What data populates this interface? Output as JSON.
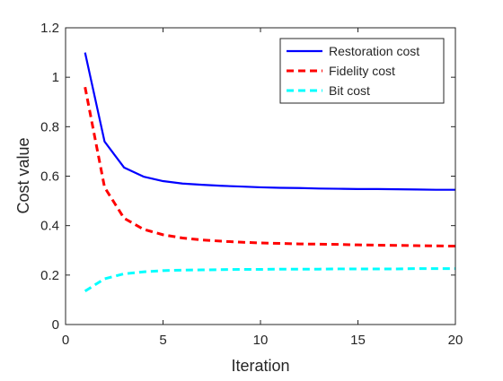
{
  "chart_data": {
    "type": "line",
    "xlabel": "Iteration",
    "ylabel": "Cost value",
    "xlim": [
      0,
      20
    ],
    "ylim": [
      0,
      1.2
    ],
    "xticks": [
      0,
      5,
      10,
      15,
      20
    ],
    "yticks": [
      0,
      0.2,
      0.4,
      0.6,
      0.8,
      1,
      1.2
    ],
    "xtick_labels": [
      "0",
      "5",
      "10",
      "15",
      "20"
    ],
    "ytick_labels": [
      "0",
      "0.2",
      "0.4",
      "0.6",
      "0.8",
      "1",
      "1.2"
    ],
    "grid": false,
    "legend_position": "top-right",
    "x": [
      1,
      2,
      3,
      4,
      5,
      6,
      7,
      8,
      9,
      10,
      11,
      12,
      13,
      14,
      15,
      16,
      17,
      18,
      19,
      20
    ],
    "series": [
      {
        "name": "Restoration cost",
        "color": "#0000ff",
        "dash": "solid",
        "values": [
          1.1,
          0.74,
          0.635,
          0.598,
          0.58,
          0.57,
          0.565,
          0.561,
          0.558,
          0.555,
          0.553,
          0.552,
          0.55,
          0.549,
          0.548,
          0.548,
          0.547,
          0.546,
          0.545,
          0.545
        ]
      },
      {
        "name": "Fidelity cost",
        "color": "#ff0000",
        "dash": "dashed",
        "values": [
          0.96,
          0.555,
          0.43,
          0.385,
          0.363,
          0.35,
          0.342,
          0.337,
          0.333,
          0.33,
          0.328,
          0.326,
          0.325,
          0.324,
          0.322,
          0.321,
          0.32,
          0.319,
          0.318,
          0.317
        ]
      },
      {
        "name": "Bit cost",
        "color": "#00ffff",
        "dash": "dashed",
        "values": [
          0.135,
          0.185,
          0.205,
          0.213,
          0.218,
          0.22,
          0.221,
          0.222,
          0.223,
          0.223,
          0.224,
          0.224,
          0.224,
          0.225,
          0.225,
          0.225,
          0.225,
          0.226,
          0.226,
          0.226
        ]
      }
    ]
  }
}
